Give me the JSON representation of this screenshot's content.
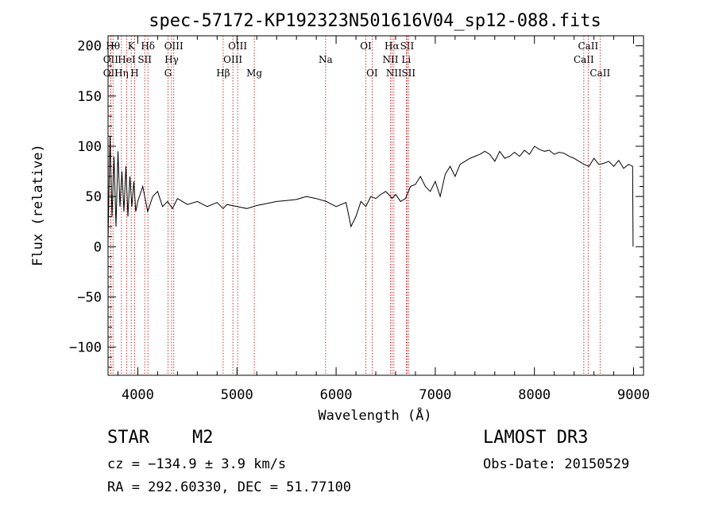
{
  "chart_data": {
    "type": "line",
    "title": "spec-57172-KP192323N501616V04_sp12-088.fits",
    "xlabel": "Wavelength (Å)",
    "ylabel": "Flux (relative)",
    "xlim": [
      3700,
      9100
    ],
    "ylim": [
      -128,
      210
    ],
    "x_ticks": [
      4000,
      5000,
      6000,
      7000,
      8000,
      9000
    ],
    "y_ticks": [
      -100,
      -50,
      0,
      50,
      100,
      150,
      200
    ],
    "series": [
      {
        "name": "flux",
        "x": [
          3700,
          3720,
          3740,
          3760,
          3780,
          3800,
          3820,
          3840,
          3860,
          3880,
          3900,
          3920,
          3940,
          3960,
          3980,
          4000,
          4050,
          4100,
          4150,
          4200,
          4250,
          4300,
          4350,
          4400,
          4500,
          4600,
          4700,
          4800,
          4861,
          4900,
          5000,
          5100,
          5200,
          5300,
          5400,
          5500,
          5600,
          5700,
          5800,
          5900,
          6000,
          6100,
          6150,
          6200,
          6250,
          6300,
          6350,
          6400,
          6450,
          6500,
          6550,
          6563,
          6600,
          6650,
          6700,
          6750,
          6800,
          6850,
          6900,
          6950,
          7000,
          7050,
          7100,
          7150,
          7200,
          7250,
          7300,
          7350,
          7400,
          7450,
          7500,
          7550,
          7600,
          7650,
          7700,
          7750,
          7800,
          7850,
          7900,
          7950,
          8000,
          8050,
          8100,
          8150,
          8200,
          8250,
          8300,
          8350,
          8400,
          8450,
          8500,
          8550,
          8600,
          8650,
          8700,
          8750,
          8800,
          8850,
          8900,
          8950,
          8990,
          8995
        ],
        "values": [
          5,
          110,
          30,
          90,
          20,
          95,
          40,
          75,
          35,
          80,
          30,
          70,
          40,
          65,
          35,
          45,
          60,
          35,
          50,
          55,
          40,
          45,
          38,
          48,
          42,
          45,
          40,
          44,
          38,
          42,
          40,
          38,
          41,
          43,
          45,
          46,
          47,
          50,
          48,
          45,
          40,
          44,
          20,
          30,
          45,
          40,
          50,
          48,
          52,
          55,
          50,
          48,
          52,
          45,
          48,
          60,
          62,
          70,
          60,
          55,
          65,
          50,
          72,
          80,
          70,
          82,
          85,
          88,
          90,
          92,
          95,
          92,
          85,
          95,
          88,
          90,
          94,
          90,
          96,
          92,
          100,
          97,
          95,
          96,
          92,
          94,
          93,
          90,
          88,
          85,
          82,
          80,
          88,
          82,
          83,
          85,
          80,
          86,
          78,
          82,
          80,
          0
        ]
      }
    ],
    "line_markers": [
      {
        "label": "OII",
        "x": 3727,
        "row": 2
      },
      {
        "label": "OII",
        "x": 3727,
        "row": 1
      },
      {
        "label": "Hθ",
        "x": 3750,
        "row": 0
      },
      {
        "label": "Hη",
        "x": 3835,
        "row": 2
      },
      {
        "label": "HeI",
        "x": 3888,
        "row": 1
      },
      {
        "label": "K",
        "x": 3934,
        "row": 0
      },
      {
        "label": "H",
        "x": 3968,
        "row": 2
      },
      {
        "label": "SII",
        "x": 4070,
        "row": 1
      },
      {
        "label": "Hδ",
        "x": 4102,
        "row": 0
      },
      {
        "label": "G",
        "x": 4305,
        "row": 2
      },
      {
        "label": "Hγ",
        "x": 4341,
        "row": 1
      },
      {
        "label": "OIII",
        "x": 4363,
        "row": 0
      },
      {
        "label": "Hβ",
        "x": 4861,
        "row": 2
      },
      {
        "label": "OIII",
        "x": 4959,
        "row": 1
      },
      {
        "label": "OIII",
        "x": 5007,
        "row": 0
      },
      {
        "label": "Mg",
        "x": 5175,
        "row": 2
      },
      {
        "label": "Na",
        "x": 5894,
        "row": 1
      },
      {
        "label": "OI",
        "x": 6300,
        "row": 0
      },
      {
        "label": "OI",
        "x": 6363,
        "row": 2
      },
      {
        "label": "NII",
        "x": 6548,
        "row": 1
      },
      {
        "label": "Hα",
        "x": 6563,
        "row": 0
      },
      {
        "label": "NII",
        "x": 6583,
        "row": 2
      },
      {
        "label": "Li",
        "x": 6707,
        "row": 1
      },
      {
        "label": "SII",
        "x": 6716,
        "row": 0
      },
      {
        "label": "SII",
        "x": 6731,
        "row": 2
      },
      {
        "label": "CaII",
        "x": 8498,
        "row": 1
      },
      {
        "label": "CaII",
        "x": 8542,
        "row": 0
      },
      {
        "label": "CaII",
        "x": 8662,
        "row": 2
      }
    ]
  },
  "info": {
    "class": "STAR",
    "subclass": "M2",
    "survey": "LAMOST DR3",
    "redshift": "cz = −134.9 ± 3.9 km/s",
    "obs_date": "Obs-Date: 20150529",
    "coords": "RA = 292.60330, DEC =  51.77100"
  }
}
